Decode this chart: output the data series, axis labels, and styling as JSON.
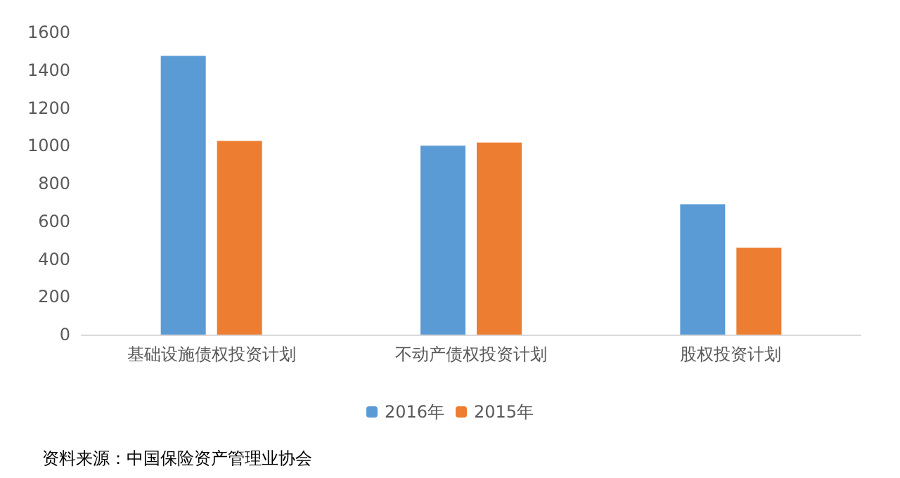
{
  "chart_data": {
    "type": "bar",
    "categories": [
      "基础设施债权投资计划",
      "不动产债权投资计划",
      "股权投资计划"
    ],
    "series": [
      {
        "name": "2016年",
        "color": "#5b9bd5",
        "values": [
          1475,
          1000,
          690
        ]
      },
      {
        "name": "2015年",
        "color": "#ed7d31",
        "values": [
          1025,
          1017,
          460
        ]
      }
    ],
    "ylim": [
      0,
      1600
    ],
    "yticks": [
      0,
      200,
      400,
      600,
      800,
      1000,
      1200,
      1400,
      1600
    ],
    "grid": false,
    "legend": "bottom",
    "annotations": [
      "资料来源：中国保险资产管理业协会"
    ]
  }
}
